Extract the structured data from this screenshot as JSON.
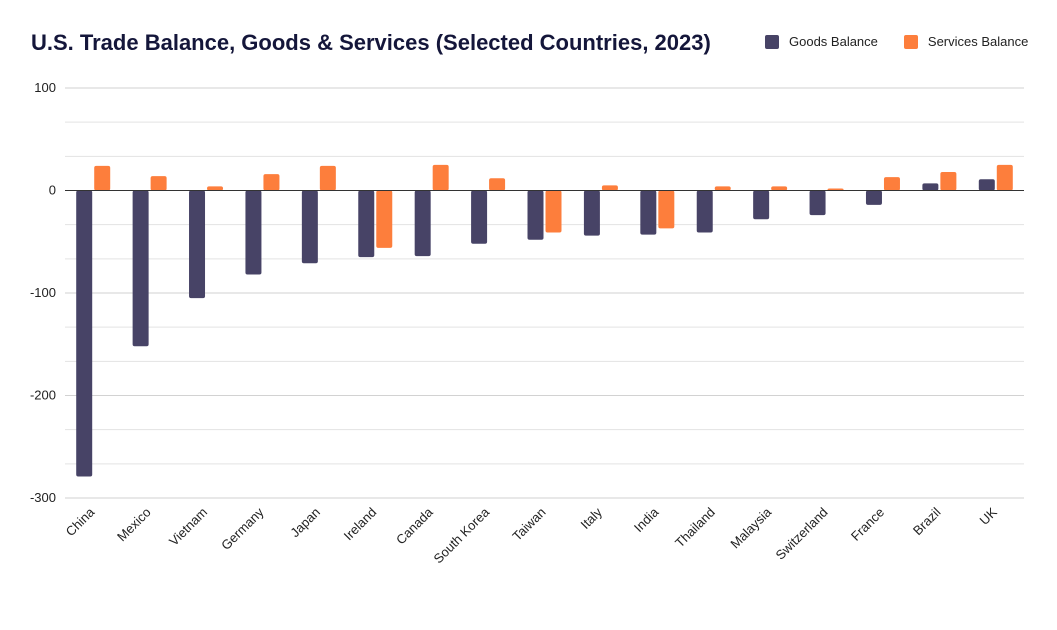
{
  "title": "U.S. Trade Balance, Goods & Services (Selected Countries, 2023)",
  "legend": [
    {
      "label": "Goods Balance",
      "color": "#474366"
    },
    {
      "label": "Services Balance",
      "color": "#fd7e3c"
    }
  ],
  "chart_data": {
    "type": "bar",
    "title": "U.S. Trade Balance, Goods & Services (Selected Countries, 2023)",
    "xlabel": "",
    "ylabel": "",
    "ylim": [
      -300,
      100
    ],
    "yticks": [
      100,
      0,
      -100,
      -200,
      -300
    ],
    "grid": true,
    "legend_position": "top-right",
    "categories": [
      "China",
      "Mexico",
      "Vietnam",
      "Germany",
      "Japan",
      "Ireland",
      "Canada",
      "South Korea",
      "Taiwan",
      "Italy",
      "India",
      "Thailand",
      "Malaysia",
      "Switzerland",
      "France",
      "Brazil",
      "UK"
    ],
    "series": [
      {
        "name": "Goods Balance",
        "color": "#474366",
        "values": [
          -279,
          -152,
          -105,
          -82,
          -71,
          -65,
          -64,
          -52,
          -48,
          -44,
          -43,
          -41,
          -28,
          -24,
          -14,
          7,
          11
        ]
      },
      {
        "name": "Services Balance",
        "color": "#fd7e3c",
        "values": [
          24,
          14,
          4,
          16,
          24,
          -56,
          25,
          12,
          -41,
          5,
          -37,
          4,
          4,
          2,
          13,
          18,
          25
        ]
      }
    ]
  }
}
